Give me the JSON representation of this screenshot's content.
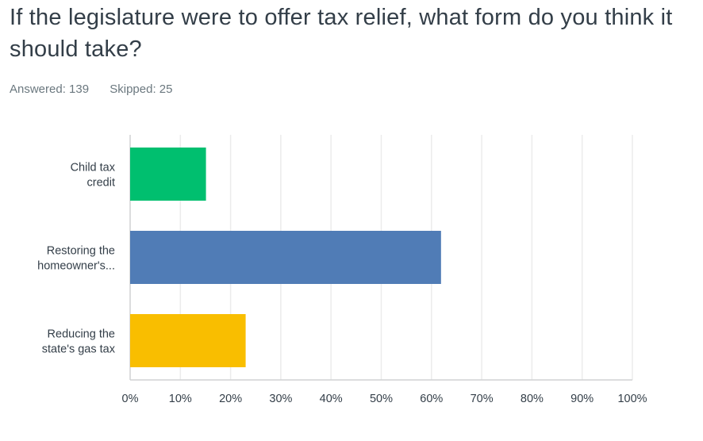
{
  "question": "If the legislature were to offer tax relief, what form do you think it should take?",
  "answered_label": "Answered: 139",
  "skipped_label": "Skipped: 25",
  "chart_data": {
    "type": "bar",
    "orientation": "horizontal",
    "categories": [
      [
        "Child tax",
        "credit"
      ],
      [
        "Restoring the",
        "homeowner's..."
      ],
      [
        "Reducing the",
        "state's gas tax"
      ]
    ],
    "values": [
      15.1,
      61.9,
      23.0
    ],
    "colors": [
      "#00bf6f",
      "#507cb6",
      "#f9be00"
    ],
    "xlim": [
      0,
      100
    ],
    "xticks": [
      "0%",
      "10%",
      "20%",
      "30%",
      "40%",
      "50%",
      "60%",
      "70%",
      "80%",
      "90%",
      "100%"
    ],
    "grid": true,
    "unit": "%"
  }
}
